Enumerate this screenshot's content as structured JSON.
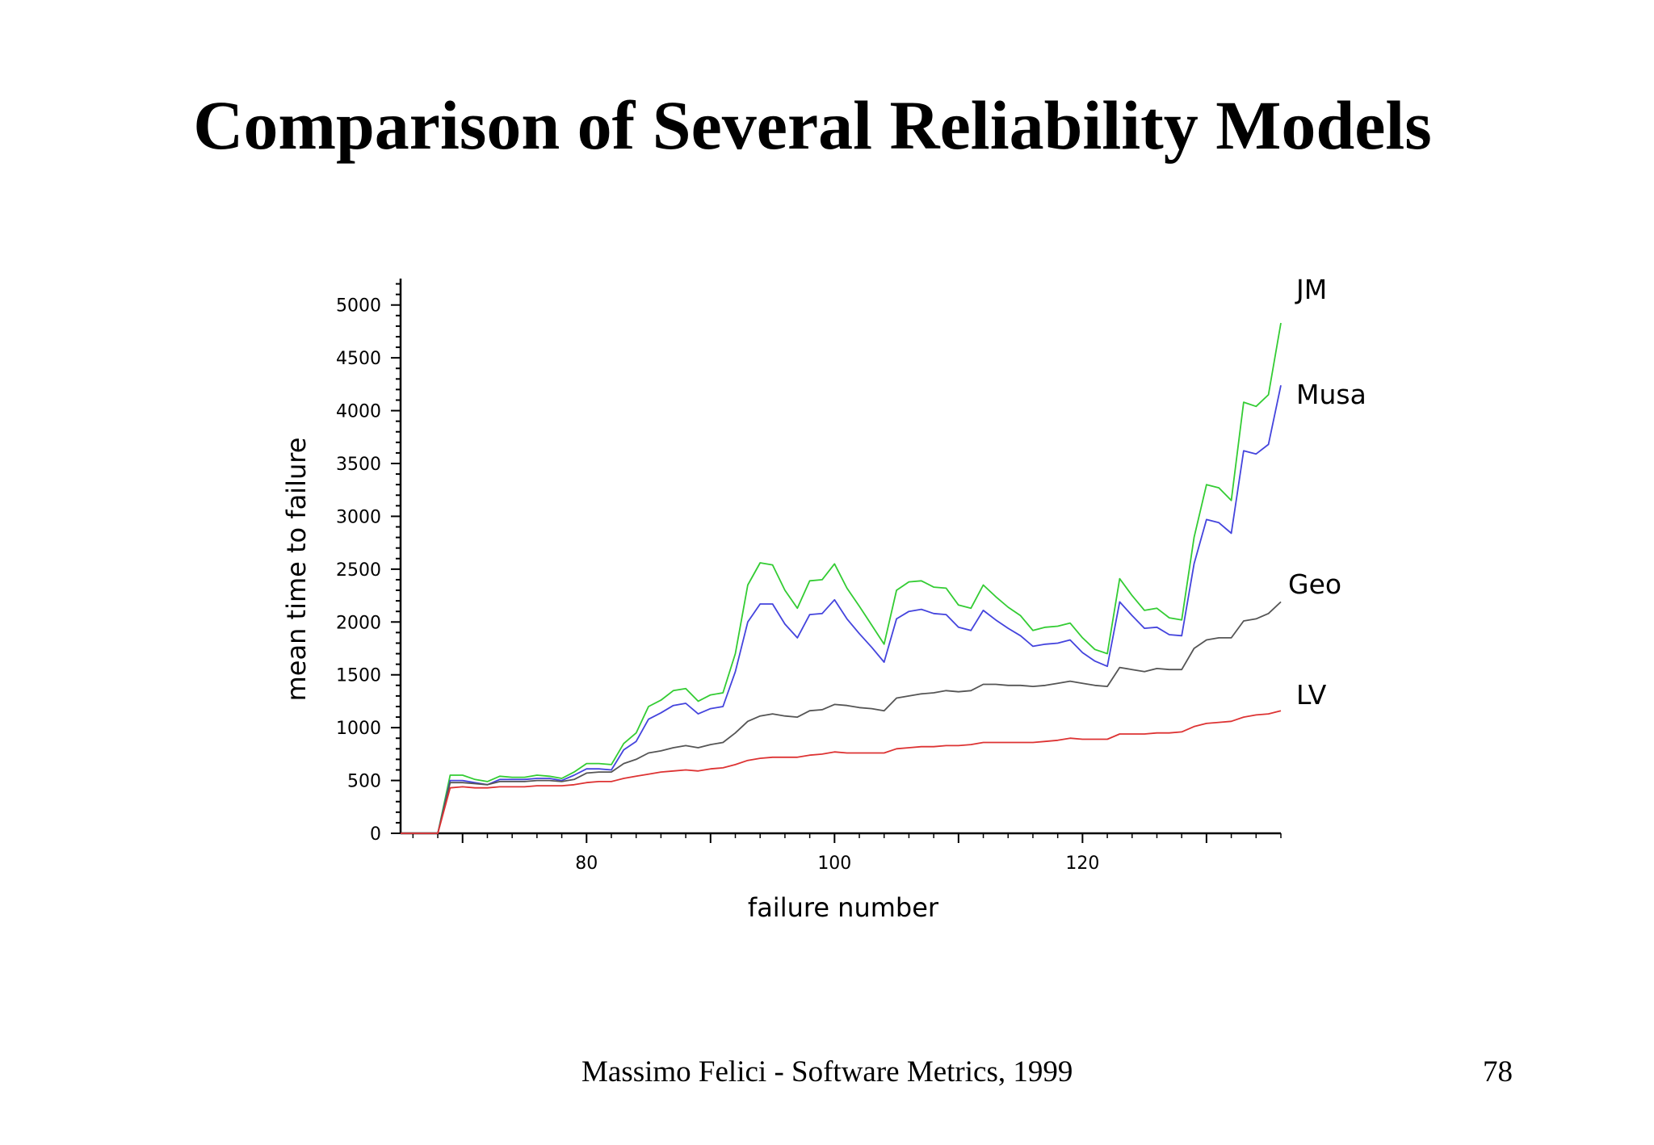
{
  "slide": {
    "title": "Comparison of Several Reliability Models",
    "footer": "Massimo Felici - Software Metrics, 1999",
    "page_number": "78"
  },
  "chart_data": {
    "type": "line",
    "xlabel": "failure number",
    "ylabel": "mean time to failure",
    "xlim": [
      65,
      136
    ],
    "ylim": [
      0,
      5250
    ],
    "xticks": [
      80,
      100,
      120
    ],
    "yticks": [
      0,
      500,
      1000,
      1500,
      2000,
      2500,
      3000,
      3500,
      4000,
      4500,
      5000
    ],
    "grid": false,
    "legend": "inline labels at right end of each series",
    "x": [
      65,
      66,
      67,
      68,
      69,
      70,
      71,
      72,
      73,
      74,
      75,
      76,
      77,
      78,
      79,
      80,
      81,
      82,
      83,
      84,
      85,
      86,
      87,
      88,
      89,
      90,
      91,
      92,
      93,
      94,
      95,
      96,
      97,
      98,
      99,
      100,
      101,
      102,
      103,
      104,
      105,
      106,
      107,
      108,
      109,
      110,
      111,
      112,
      113,
      114,
      115,
      116,
      117,
      118,
      119,
      120,
      121,
      122,
      123,
      124,
      125,
      126,
      127,
      128,
      129,
      130,
      131,
      132,
      133,
      134,
      135,
      136
    ],
    "series": [
      {
        "name": "JM",
        "color": "#33cc33",
        "values": [
          0,
          0,
          0,
          0,
          550,
          550,
          510,
          490,
          540,
          530,
          530,
          550,
          540,
          520,
          580,
          660,
          660,
          650,
          850,
          950,
          1200,
          1260,
          1350,
          1370,
          1250,
          1310,
          1330,
          1700,
          2350,
          2560,
          2540,
          2300,
          2130,
          2390,
          2400,
          2550,
          2320,
          2150,
          1970,
          1790,
          2300,
          2380,
          2390,
          2330,
          2320,
          2160,
          2130,
          2350,
          2240,
          2140,
          2060,
          1920,
          1950,
          1960,
          1990,
          1850,
          1740,
          1700,
          2410,
          2250,
          2110,
          2130,
          2040,
          2020,
          2800,
          3300,
          3270,
          3150,
          4080,
          4040,
          4150,
          4830
        ]
      },
      {
        "name": "Musa",
        "color": "#4444dd",
        "values": [
          0,
          0,
          0,
          0,
          500,
          500,
          480,
          460,
          510,
          510,
          510,
          520,
          520,
          500,
          550,
          610,
          610,
          600,
          790,
          870,
          1080,
          1140,
          1210,
          1230,
          1130,
          1180,
          1200,
          1530,
          2000,
          2170,
          2170,
          1980,
          1850,
          2070,
          2080,
          2210,
          2030,
          1890,
          1760,
          1620,
          2030,
          2100,
          2120,
          2080,
          2070,
          1950,
          1920,
          2110,
          2020,
          1940,
          1870,
          1770,
          1790,
          1800,
          1830,
          1710,
          1630,
          1580,
          2190,
          2060,
          1940,
          1950,
          1880,
          1870,
          2550,
          2970,
          2940,
          2840,
          3620,
          3590,
          3680,
          4240
        ]
      },
      {
        "name": "Geo",
        "color": "#555555",
        "values": [
          0,
          0,
          0,
          0,
          480,
          480,
          470,
          460,
          490,
          490,
          490,
          500,
          500,
          490,
          510,
          570,
          580,
          580,
          660,
          700,
          760,
          780,
          810,
          830,
          810,
          840,
          860,
          950,
          1060,
          1110,
          1130,
          1110,
          1100,
          1160,
          1170,
          1220,
          1210,
          1190,
          1180,
          1160,
          1280,
          1300,
          1320,
          1330,
          1350,
          1340,
          1350,
          1410,
          1410,
          1400,
          1400,
          1390,
          1400,
          1420,
          1440,
          1420,
          1400,
          1390,
          1570,
          1550,
          1530,
          1560,
          1550,
          1550,
          1750,
          1830,
          1850,
          1850,
          2010,
          2030,
          2080,
          2190
        ]
      },
      {
        "name": "LV",
        "color": "#dd3333",
        "values": [
          0,
          0,
          0,
          0,
          430,
          440,
          430,
          430,
          440,
          440,
          440,
          450,
          450,
          450,
          460,
          480,
          490,
          490,
          520,
          540,
          560,
          580,
          590,
          600,
          590,
          610,
          620,
          650,
          690,
          710,
          720,
          720,
          720,
          740,
          750,
          770,
          760,
          760,
          760,
          760,
          800,
          810,
          820,
          820,
          830,
          830,
          840,
          860,
          860,
          860,
          860,
          860,
          870,
          880,
          900,
          890,
          890,
          890,
          940,
          940,
          940,
          950,
          950,
          960,
          1010,
          1040,
          1050,
          1060,
          1100,
          1120,
          1130,
          1160
        ]
      }
    ]
  }
}
